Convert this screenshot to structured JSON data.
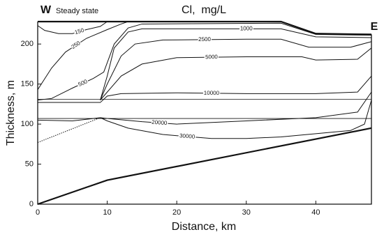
{
  "chart_data": {
    "type": "contour",
    "title": "Cl,  mg/L",
    "subtitle": "Steady state",
    "left_label": "W",
    "right_label": "E",
    "x_label": "Distance, km",
    "y_label": "Thickness, m",
    "xlim": [
      0,
      48
    ],
    "ylim": [
      0,
      228
    ],
    "xticks": [
      0,
      10,
      20,
      30,
      40
    ],
    "yticks": [
      0,
      50,
      100,
      150,
      200
    ],
    "boundaries": [
      {
        "x": [
          0,
          10,
          48
        ],
        "y": [
          0,
          30,
          95
        ],
        "style": "thick"
      },
      {
        "x": [
          0,
          12,
          35,
          40,
          48
        ],
        "y": [
          228,
          228,
          228,
          213,
          212
        ],
        "style": "thick"
      },
      {
        "x": [
          0,
          48
        ],
        "y": [
          131,
          131
        ],
        "style": "thin"
      },
      {
        "x": [
          0,
          48
        ],
        "y": [
          107,
          107
        ],
        "style": "thin"
      },
      {
        "x": [
          0,
          9
        ],
        "y": [
          77,
          108
        ],
        "style": "dotted"
      }
    ],
    "contours": [
      {
        "level": 150,
        "x": [
          0,
          1,
          3,
          5,
          7,
          9,
          10
        ],
        "y": [
          223,
          217,
          213,
          213,
          218,
          222,
          228
        ]
      },
      {
        "level": 250,
        "x": [
          0,
          2,
          4,
          7,
          10,
          12,
          13
        ],
        "y": [
          143,
          170,
          190,
          207,
          218,
          225,
          228
        ]
      },
      {
        "level": 500,
        "x": [
          0,
          2,
          5,
          8,
          9.5,
          11,
          13,
          15,
          35,
          40,
          48
        ],
        "y": [
          130,
          132,
          145,
          157,
          165,
          200,
          220,
          225,
          226,
          212,
          211
        ]
      },
      {
        "level": 1000,
        "x": [
          9,
          10,
          11,
          13,
          15,
          25,
          35,
          40,
          48
        ],
        "y": [
          130,
          160,
          195,
          215,
          219,
          219,
          219,
          209,
          208
        ]
      },
      {
        "level": 2500,
        "x": [
          9,
          10,
          12,
          14,
          18,
          30,
          35,
          39,
          45,
          48
        ],
        "y": [
          130,
          150,
          185,
          200,
          205,
          206,
          206,
          196,
          196,
          203
        ]
      },
      {
        "level": 5000,
        "x": [
          9,
          10,
          12,
          15,
          20,
          30,
          38,
          40,
          46,
          48
        ],
        "y": [
          130,
          140,
          160,
          175,
          183,
          184,
          184,
          180,
          181,
          195
        ]
      },
      {
        "level": 10000,
        "x": [
          0,
          9,
          10,
          12,
          20,
          30,
          40,
          46,
          48
        ],
        "y": [
          127,
          127,
          135,
          138,
          139,
          138,
          138,
          140,
          160
        ]
      },
      {
        "level": 20000,
        "x": [
          0,
          5,
          9,
          10,
          15,
          20,
          30,
          40,
          46,
          48
        ],
        "y": [
          105,
          104,
          108,
          107,
          103,
          100,
          104,
          108,
          115,
          140
        ]
      },
      {
        "level": 30000,
        "x": [
          9,
          10,
          13,
          18,
          25,
          30,
          35,
          40,
          45,
          47,
          48
        ],
        "y": [
          108,
          104,
          95,
          87,
          82,
          82,
          84,
          88,
          92,
          100,
          130
        ]
      }
    ]
  }
}
